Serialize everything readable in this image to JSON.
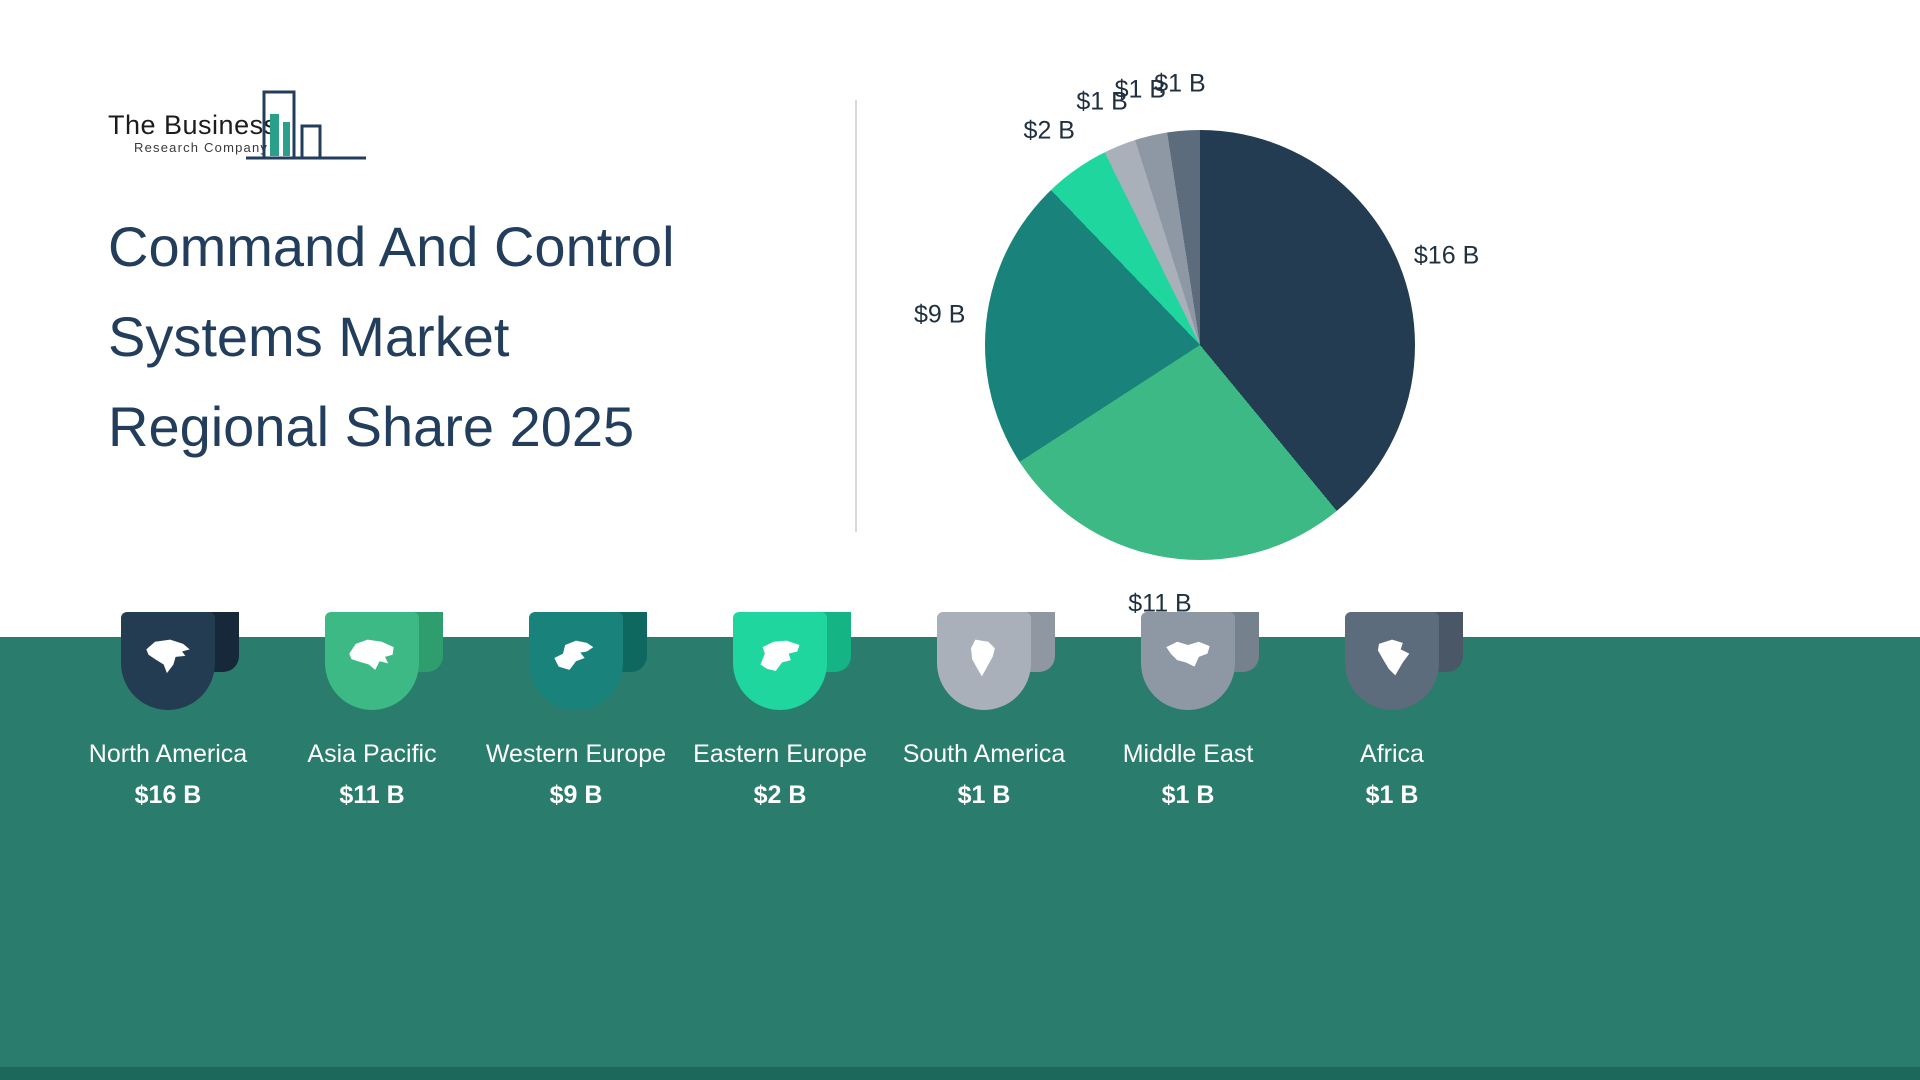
{
  "brand": {
    "line1": "The Business",
    "line2": "Research Company"
  },
  "title": {
    "line1": "Command And Control",
    "line2": "Systems Market",
    "line3": "Regional Share 2025"
  },
  "chart_data": {
    "type": "pie",
    "title": "Command And Control Systems Market Regional Share 2025",
    "unit": "USD billions",
    "categories": [
      "North America",
      "Asia Pacific",
      "Western Europe",
      "Eastern Europe",
      "South America",
      "Middle East",
      "Africa"
    ],
    "values": [
      16,
      11,
      9,
      2,
      1,
      1,
      1
    ],
    "value_labels": [
      "$16 B",
      "$11 B",
      "$9 B",
      "$2 B",
      "$1 B",
      "$1 B",
      "$1 B"
    ],
    "colors": [
      "#243c52",
      "#3cb984",
      "#19827a",
      "#1fd69f",
      "#a9b0ba",
      "#8e98a4",
      "#5d6c7d"
    ],
    "start_angle_deg": 0,
    "direction": "clockwise",
    "legend_position": "bottom"
  },
  "legend": {
    "items": [
      {
        "label": "North America",
        "value": "$16 B",
        "color": "#243c52",
        "color_dark": "#16283a",
        "icon": "north-america"
      },
      {
        "label": "Asia Pacific",
        "value": "$11 B",
        "color": "#3cb984",
        "color_dark": "#2e9e6e",
        "icon": "asia"
      },
      {
        "label": "Western Europe",
        "value": "$9 B",
        "color": "#19827a",
        "color_dark": "#0f6860",
        "icon": "western-europe"
      },
      {
        "label": "Eastern Europe",
        "value": "$2 B",
        "color": "#1fd69f",
        "color_dark": "#15b485",
        "icon": "eastern-europe"
      },
      {
        "label": "South America",
        "value": "$1 B",
        "color": "#a9b0ba",
        "color_dark": "#8f97a2",
        "icon": "south-america"
      },
      {
        "label": "Middle East",
        "value": "$1 B",
        "color": "#8e98a4",
        "color_dark": "#76818e",
        "icon": "middle-east"
      },
      {
        "label": "Africa",
        "value": "$1 B",
        "color": "#5d6c7d",
        "color_dark": "#495766",
        "icon": "africa"
      }
    ]
  },
  "colors": {
    "background": "#ffffff",
    "band": "#2a7c6c",
    "band_bottom": "#1c685a",
    "title_text": "#233e5c",
    "label_text": "#20303f",
    "divider": "#d9d9d9",
    "legend_text": "#ffffff",
    "logo_accent": "#2aa08a",
    "logo_outline": "#233e5c"
  }
}
